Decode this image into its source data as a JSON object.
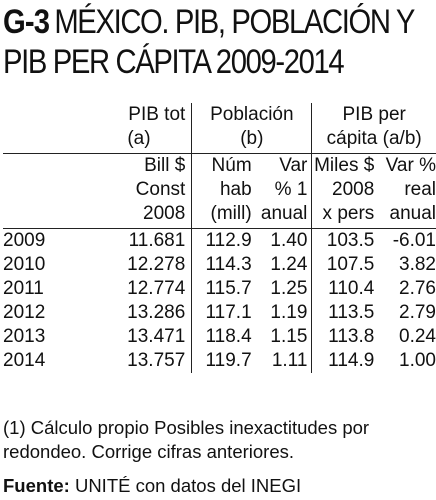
{
  "title": {
    "code": "G-3",
    "line1": "MÉXICO. PIB, POBLACIÓN Y",
    "line2": "PIB PER CÁPITA 2009-2014"
  },
  "header": {
    "pib_tot": "PIB tot",
    "pib_tot_ref": "(a)",
    "poblacion": "Población",
    "poblacion_ref": "(b)",
    "pib_per": "PIB per",
    "pib_per_ref": "cápita (a/b)",
    "units": [
      [
        "Bill $",
        "Const",
        "2008"
      ],
      [
        "Núm",
        "hab",
        "(mill)"
      ],
      [
        "Var",
        "% 1",
        "anual"
      ],
      [
        "Miles $",
        "2008",
        "x pers"
      ],
      [
        "Var %",
        "real",
        "anual"
      ]
    ]
  },
  "rows": [
    {
      "year": "2009",
      "pib": "11.681",
      "pob": "112.9",
      "var": "1.40",
      "miles": "103.5",
      "var_real": "-6.01"
    },
    {
      "year": "2010",
      "pib": "12.278",
      "pob": "114.3",
      "var": "1.24",
      "miles": "107.5",
      "var_real": "3.82"
    },
    {
      "year": "2011",
      "pib": "12.774",
      "pob": "115.7",
      "var": "1.25",
      "miles": "110.4",
      "var_real": "2.76"
    },
    {
      "year": "2012",
      "pib": "13.286",
      "pob": "117.1",
      "var": "1.19",
      "miles": "113.5",
      "var_real": "2.79"
    },
    {
      "year": "2013",
      "pib": "13.471",
      "pob": "118.4",
      "var": "1.15",
      "miles": "113.8",
      "var_real": "0.24"
    },
    {
      "year": "2014",
      "pib": "13.757",
      "pob": "119.7",
      "var": "1.11",
      "miles": "114.9",
      "var_real": "1.00"
    }
  ],
  "footnote": "(1) Cálculo propio Posibles inexactitudes por redondeo. Corrige cifras anteriores.",
  "source": {
    "label": "Fuente:",
    "text": " UNITÉ con datos del INEGI"
  }
}
